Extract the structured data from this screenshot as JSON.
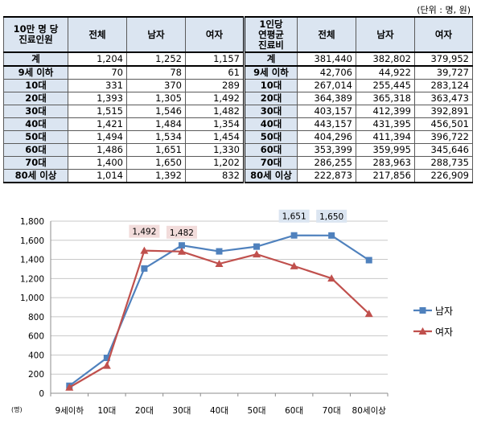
{
  "unit_note": "(단위 : 명, 원)",
  "table": {
    "header_left": [
      "10만 명 당\n진료인원",
      "전체",
      "남자",
      "여자"
    ],
    "header_right": [
      "1인당\n연평균\n진료비",
      "전체",
      "남자",
      "여자"
    ],
    "rows": [
      {
        "label": "계",
        "a": [
          "1,204",
          "1,252",
          "1,157"
        ],
        "label2": "계",
        "b": [
          "381,440",
          "382,802",
          "379,952"
        ]
      },
      {
        "label": "9세 이하",
        "a": [
          "70",
          "78",
          "61"
        ],
        "label2": "9세 이하",
        "b": [
          "42,706",
          "44,922",
          "39,727"
        ]
      },
      {
        "label": "10대",
        "a": [
          "331",
          "370",
          "289"
        ],
        "label2": "10대",
        "b": [
          "267,014",
          "255,445",
          "283,124"
        ]
      },
      {
        "label": "20대",
        "a": [
          "1,393",
          "1,305",
          "1,492"
        ],
        "label2": "20대",
        "b": [
          "364,389",
          "365,318",
          "363,473"
        ]
      },
      {
        "label": "30대",
        "a": [
          "1,515",
          "1,546",
          "1,482"
        ],
        "label2": "30대",
        "b": [
          "403,157",
          "412,399",
          "392,891"
        ]
      },
      {
        "label": "40대",
        "a": [
          "1,421",
          "1,484",
          "1,354"
        ],
        "label2": "40대",
        "b": [
          "443,157",
          "431,395",
          "456,501"
        ]
      },
      {
        "label": "50대",
        "a": [
          "1,494",
          "1,534",
          "1,454"
        ],
        "label2": "50대",
        "b": [
          "404,296",
          "411,394",
          "396,722"
        ]
      },
      {
        "label": "60대",
        "a": [
          "1,486",
          "1,651",
          "1,330"
        ],
        "label2": "60대",
        "b": [
          "353,399",
          "359,995",
          "345,646"
        ]
      },
      {
        "label": "70대",
        "a": [
          "1,400",
          "1,650",
          "1,202"
        ],
        "label2": "70대",
        "b": [
          "286,255",
          "283,963",
          "288,735"
        ]
      },
      {
        "label": "80세 이상",
        "a": [
          "1,014",
          "1,392",
          "832"
        ],
        "label2": "80세 이상",
        "b": [
          "222,873",
          "217,856",
          "226,909"
        ]
      }
    ]
  },
  "chart_data": {
    "type": "line",
    "categories": [
      "9세이하",
      "10대",
      "20대",
      "30대",
      "40대",
      "50대",
      "60대",
      "70대",
      "80세이상"
    ],
    "series": [
      {
        "name": "남자",
        "color": "#4f81bd",
        "marker": "square",
        "values": [
          78,
          370,
          1305,
          1546,
          1484,
          1534,
          1651,
          1650,
          1392
        ]
      },
      {
        "name": "여자",
        "color": "#c0504d",
        "marker": "triangle",
        "values": [
          61,
          289,
          1492,
          1482,
          1354,
          1454,
          1330,
          1202,
          832
        ]
      }
    ],
    "ylim": [
      0,
      1800
    ],
    "yticks": [
      0,
      200,
      400,
      600,
      800,
      "1,000",
      "1,200",
      "1,400",
      "1,600",
      "1,800"
    ],
    "ytick_values": [
      0,
      200,
      400,
      600,
      800,
      1000,
      1200,
      1400,
      1600,
      1800
    ],
    "ylabel": "(명)",
    "grid": true,
    "legend": "right",
    "annotations": [
      {
        "series": "여자",
        "category": "20대",
        "text": "1,492",
        "color": "#f2dcdb"
      },
      {
        "series": "여자",
        "category": "30대",
        "text": "1,482",
        "color": "#f2dcdb"
      },
      {
        "series": "남자",
        "category": "60대",
        "text": "1,651",
        "color": "#dbe5f1"
      },
      {
        "series": "남자",
        "category": "70대",
        "text": "1,650",
        "color": "#dbe5f1"
      }
    ]
  }
}
